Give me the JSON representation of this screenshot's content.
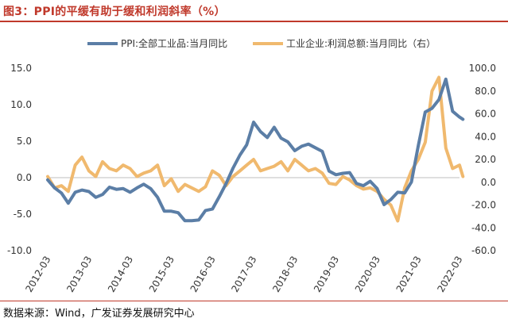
{
  "title": "图3：PPI的平缓有助于缓和利润斜率（%）",
  "source": "数据来源：Wind，广发证券发展研究中心",
  "colors": {
    "ppi": "#5b7ea6",
    "profit": "#f0b96e",
    "title": "#c0392b"
  },
  "chart_data": {
    "type": "line",
    "title": "图3：PPI的平缓有助于缓和利润斜率（%）",
    "categories": [
      "2012-03",
      "2013-03",
      "2014-03",
      "2015-03",
      "2016-03",
      "2017-03",
      "2018-03",
      "2019-03",
      "2020-03",
      "2021-03",
      "2022-03"
    ],
    "left_axis": {
      "ylim": [
        -10,
        15
      ],
      "ticks": [
        "-10.0",
        "-5.0",
        "0.0",
        "5.0",
        "10.0",
        "15.0"
      ]
    },
    "right_axis": {
      "ylim": [
        -60,
        100
      ],
      "ticks": [
        "-60.0",
        "-40.0",
        "-20.0",
        "0.0",
        "20.0",
        "40.0",
        "60.0",
        "80.0",
        "100.0"
      ]
    },
    "series": [
      {
        "name": "PPI:全部工业品:当月同比",
        "axis": "left",
        "x": [
          0,
          0.167,
          0.333,
          0.5,
          0.667,
          0.833,
          1,
          1.167,
          1.333,
          1.5,
          1.667,
          1.833,
          2,
          2.167,
          2.333,
          2.5,
          2.667,
          2.833,
          3,
          3.167,
          3.333,
          3.5,
          3.667,
          3.833,
          4,
          4.167,
          4.333,
          4.5,
          4.667,
          4.833,
          5,
          5.167,
          5.333,
          5.5,
          5.667,
          5.833,
          6,
          6.167,
          6.333,
          6.5,
          6.667,
          6.833,
          7,
          7.167,
          7.333,
          7.5,
          7.667,
          7.833,
          8,
          8.167,
          8.333,
          8.5,
          8.667,
          8.833,
          9,
          9.167,
          9.333,
          9.5,
          9.667,
          9.833,
          10,
          10.083
        ],
        "values": [
          -0.3,
          -1.4,
          -2.1,
          -3.5,
          -2.0,
          -1.7,
          -1.9,
          -2.7,
          -2.3,
          -1.3,
          -1.6,
          -1.5,
          -2.0,
          -1.4,
          -0.9,
          -1.5,
          -2.7,
          -4.6,
          -4.6,
          -4.8,
          -5.9,
          -5.9,
          -5.8,
          -4.5,
          -4.3,
          -2.6,
          -0.8,
          1.3,
          3.1,
          4.5,
          7.6,
          6.3,
          5.5,
          6.9,
          5.4,
          4.9,
          3.7,
          4.3,
          4.6,
          4.1,
          3.6,
          0.9,
          0.4,
          0.6,
          0.7,
          -0.8,
          -1.1,
          -0.5,
          -1.5,
          -3.7,
          -3.0,
          -2.0,
          -2.1,
          -0.6,
          4.4,
          9.0,
          9.5,
          10.7,
          13.5,
          9.1,
          8.3,
          8.0
        ]
      },
      {
        "name": "工业企业:利润总额:当月同比（右）",
        "axis": "right",
        "x": [
          0,
          0.167,
          0.333,
          0.5,
          0.667,
          0.833,
          1,
          1.167,
          1.333,
          1.5,
          1.667,
          1.833,
          2,
          2.167,
          2.333,
          2.5,
          2.667,
          2.833,
          3,
          3.167,
          3.333,
          3.5,
          3.667,
          3.833,
          4,
          4.167,
          4.333,
          4.5,
          4.667,
          4.833,
          5,
          5.167,
          5.333,
          5.5,
          5.667,
          5.833,
          6,
          6.167,
          6.333,
          6.5,
          6.667,
          6.833,
          7,
          7.167,
          7.333,
          7.5,
          7.667,
          7.833,
          8,
          8.167,
          8.333,
          8.5,
          8.667,
          8.833,
          9,
          9.167,
          9.333,
          9.5,
          9.667,
          9.833,
          10,
          10.083
        ],
        "values": [
          5,
          -5,
          -3,
          -8,
          15,
          22,
          10,
          5,
          18,
          12,
          10,
          15,
          12,
          5,
          8,
          10,
          15,
          -3,
          3,
          -8,
          -2,
          -5,
          -8,
          -4,
          10,
          6,
          -3,
          5,
          10,
          15,
          20,
          10,
          12,
          14,
          18,
          10,
          20,
          15,
          10,
          12,
          8,
          -1,
          -2,
          5,
          2,
          -3,
          -6,
          -5,
          -8,
          -15,
          -20,
          -34,
          -5,
          10,
          20,
          35,
          80,
          92,
          30,
          12,
          15,
          5
        ]
      }
    ]
  }
}
